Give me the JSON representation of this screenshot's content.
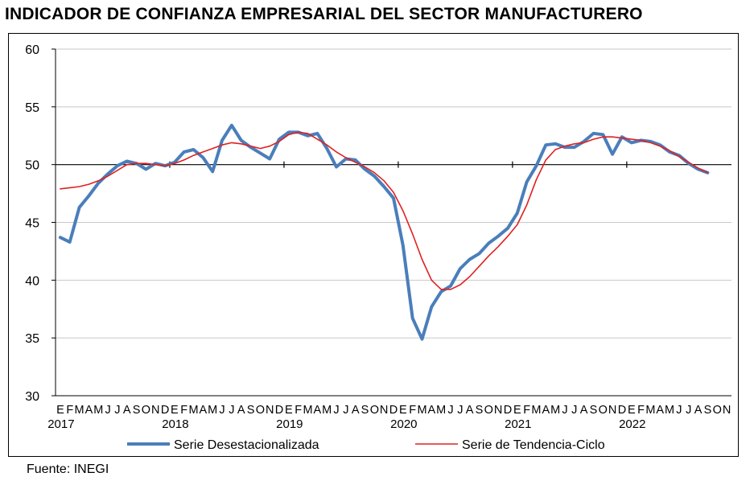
{
  "title": "Indicador de Confianza Empresarial del Sector Manufacturero",
  "source": "Fuente: INEGI",
  "chart_data": {
    "type": "line",
    "title": "Indicador de Confianza Empresarial del Sector Manufacturero",
    "xlabel": "",
    "ylabel": "",
    "ylim": [
      30,
      60
    ],
    "yticks": [
      "30",
      "35",
      "40",
      "45",
      "50",
      "55",
      "60"
    ],
    "reference_line": 50,
    "grid": true,
    "legend_position": "bottom",
    "month_labels": [
      "E",
      "F",
      "M",
      "A",
      "M",
      "J",
      "J",
      "A",
      "S",
      "O",
      "N",
      "D"
    ],
    "year_labels": [
      "2017",
      "2018",
      "2019",
      "2020",
      "2021",
      "2022"
    ],
    "months_count": 71,
    "series": [
      {
        "name": "Serie Desestacionalizada",
        "color": "#4a7ebb",
        "values": [
          43.7,
          43.3,
          46.3,
          47.3,
          48.4,
          49.2,
          49.9,
          50.3,
          50.1,
          49.6,
          50.1,
          49.9,
          50.2,
          51.1,
          51.3,
          50.6,
          49.4,
          52.1,
          53.4,
          52.1,
          51.5,
          51.0,
          50.5,
          52.2,
          52.8,
          52.8,
          52.5,
          52.7,
          51.4,
          49.8,
          50.5,
          50.4,
          49.6,
          49.0,
          48.1,
          47.1,
          43.0,
          36.7,
          34.9,
          37.7,
          39.0,
          39.5,
          41.0,
          41.8,
          42.3,
          43.2,
          43.8,
          44.5,
          45.8,
          48.5,
          49.9,
          51.7,
          51.8,
          51.5,
          51.5,
          52.0,
          52.7,
          52.6,
          50.9,
          52.4,
          51.9,
          52.1,
          52.0,
          51.7,
          51.1,
          50.8,
          50.1,
          49.6,
          49.3
        ],
        "x_start": 0
      },
      {
        "name": "Serie de Tendencia-Ciclo",
        "color": "#e02020",
        "values": [
          47.9,
          48.0,
          48.1,
          48.3,
          48.6,
          49.0,
          49.5,
          50.0,
          50.1,
          50.1,
          50.0,
          49.9,
          50.1,
          50.4,
          50.8,
          51.1,
          51.4,
          51.7,
          51.9,
          51.8,
          51.6,
          51.4,
          51.6,
          52.0,
          52.6,
          52.8,
          52.7,
          52.2,
          51.7,
          51.1,
          50.6,
          50.2,
          49.8,
          49.3,
          48.6,
          47.6,
          46.0,
          44.0,
          41.8,
          40.0,
          39.2,
          39.2,
          39.6,
          40.3,
          41.2,
          42.1,
          42.9,
          43.8,
          44.8,
          46.5,
          48.7,
          50.4,
          51.3,
          51.6,
          51.8,
          51.9,
          52.2,
          52.4,
          52.4,
          52.3,
          52.2,
          52.1,
          51.9,
          51.6,
          51.2,
          50.7,
          50.2,
          49.7,
          49.3
        ],
        "x_start": 0
      }
    ]
  }
}
